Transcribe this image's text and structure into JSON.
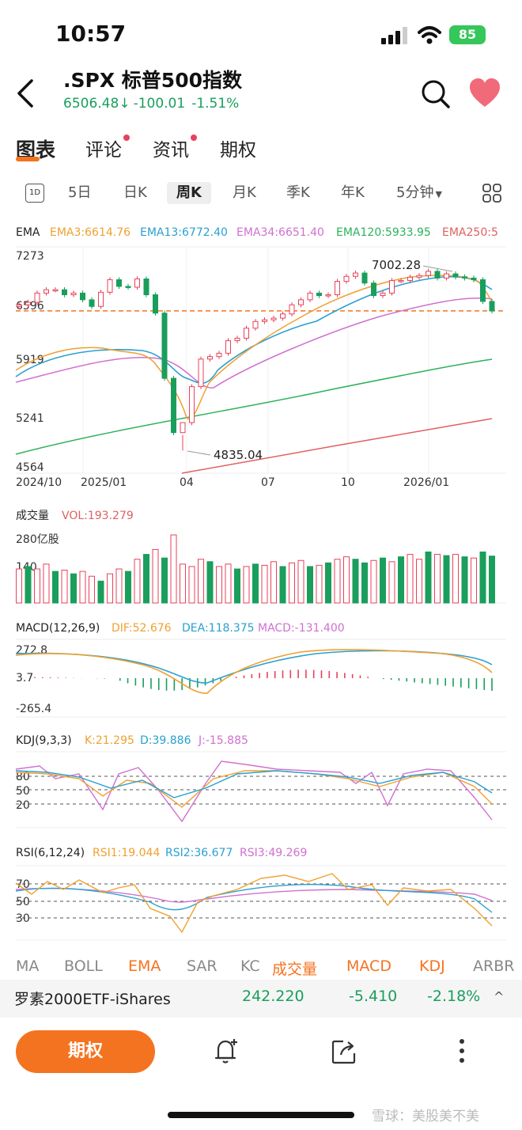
{
  "status": {
    "time": "10:57",
    "battery": "85"
  },
  "header": {
    "title": ".SPX  标普500指数",
    "price": "6506.48",
    "price_arrow": "↓",
    "change": "-100.01",
    "change_pct": "-1.51%"
  },
  "tabs": [
    {
      "label": "图表"
    },
    {
      "label": "评论"
    },
    {
      "label": "资讯"
    },
    {
      "label": "期权"
    }
  ],
  "periods": {
    "intraday_icon": "1D",
    "items": [
      "5日",
      "日K",
      "周K",
      "月K",
      "季K",
      "年K",
      "5分钟"
    ],
    "dropdown_arrow": "▼"
  },
  "ema_legend": {
    "name": "EMA",
    "ema3": "EMA3:6614.76",
    "ema13": "EMA13:6772.40",
    "ema34": "EMA34:6651.40",
    "ema120": "EMA120:5933.95",
    "ema250": "EMA250:5"
  },
  "price_axis": [
    "7273",
    "6596",
    "5919",
    "5241",
    "4564"
  ],
  "annotations": {
    "high": "7002.28",
    "low": "4835.04"
  },
  "x_labels": [
    "2024/10",
    "2025/01",
    "04",
    "07",
    "10",
    "2026/01"
  ],
  "volume": {
    "name": "成交量",
    "value": "VOL:193.279",
    "axis_top": "280亿股",
    "axis_mid": "140"
  },
  "macd": {
    "name": "MACD(12,26,9)",
    "dif": "DIF:52.676",
    "dea": "DEA:118.375",
    "macd": "MACD:-131.400",
    "axis": [
      "272.8",
      "3.7",
      "-265.4"
    ]
  },
  "kdj": {
    "name": "KDJ(9,3,3)",
    "k": "K:21.295",
    "d": "D:39.886",
    "j": "J:-15.885",
    "axis": [
      "80",
      "50",
      "20"
    ]
  },
  "rsi": {
    "name": "RSI(6,12,24)",
    "rsi1": "RSI1:19.044",
    "rsi2": "RSI2:36.677",
    "rsi3": "RSI3:49.269",
    "axis": [
      "70",
      "50",
      "30"
    ]
  },
  "indicator_tabs": [
    "MA",
    "BOLL",
    "EMA",
    "SAR",
    "KC",
    "成交量",
    "MACD",
    "KDJ",
    "ARBR"
  ],
  "ticker": {
    "name": "罗素2000ETF-iShares",
    "price": "242.220",
    "change": "-5.410",
    "change_pct": "-2.18%",
    "toggle": "^"
  },
  "bottom": {
    "options_label": "期权"
  },
  "watermark": "雪球：美股美不美",
  "colors": {
    "up": "#e84259",
    "down": "#1a9e5c",
    "accent": "#f47320",
    "ema3": "#f0a030",
    "ema13": "#2aa0d0",
    "ema34": "#d070d0",
    "ema120": "#2cb25a",
    "ema250": "#e06060"
  },
  "chart_data": {
    "type": "candlestick",
    "title": ".SPX 标普500指数 周K",
    "y_range": [
      4564,
      7273
    ],
    "current_price": 6506.48,
    "high": 7002.28,
    "low": 4835.04,
    "close": [
      6580,
      6610,
      6720,
      6760,
      6760,
      6700,
      6720,
      6640,
      6560,
      6730,
      6880,
      6800,
      6790,
      6890,
      6700,
      6480,
      5700,
      5050,
      5170,
      5600,
      5930,
      5960,
      6000,
      6150,
      6180,
      6300,
      6380,
      6400,
      6420,
      6470,
      6580,
      6640,
      6720,
      6690,
      6700,
      6860,
      6920,
      6960,
      6840,
      6690,
      6720,
      6870,
      6870,
      6910,
      6930,
      6980,
      6900,
      6950,
      6915,
      6900,
      6880,
      6620,
      6506
    ],
    "ema3": 6614.76,
    "ema13": 6772.4,
    "ema34": 6651.4,
    "ema120": 5933.95,
    "volume_axis_max": 280,
    "vol_last": 193.279,
    "volume": [
      140,
      150,
      140,
      160,
      130,
      135,
      120,
      130,
      110,
      90,
      120,
      140,
      130,
      180,
      200,
      220,
      185,
      280,
      160,
      150,
      180,
      170,
      150,
      160,
      140,
      150,
      160,
      155,
      170,
      150,
      165,
      175,
      150,
      155,
      165,
      180,
      190,
      180,
      165,
      175,
      185,
      170,
      190,
      200,
      180,
      210,
      200,
      195,
      200,
      190,
      185,
      210,
      193
    ],
    "volume_up": [
      true,
      false,
      true,
      true,
      false,
      true,
      false,
      true,
      true,
      false,
      true,
      true,
      false,
      true,
      false,
      true,
      false,
      true,
      true,
      true,
      true,
      false,
      true,
      true,
      false,
      true,
      false,
      true,
      true,
      false,
      true,
      true,
      false,
      true,
      false,
      true,
      true,
      false,
      false,
      true,
      false,
      true,
      false,
      true,
      true,
      false,
      true,
      false,
      true,
      false,
      true,
      false,
      false
    ],
    "macd_axis": [
      -265.4,
      272.8
    ],
    "dif": 52.676,
    "dea": 118.375,
    "macd_value": -131.4,
    "kdj": {
      "k": 21.295,
      "d": 39.886,
      "j": -15.885
    },
    "rsi": {
      "rsi1": 19.044,
      "rsi2": 36.677,
      "rsi3": 49.269
    }
  }
}
